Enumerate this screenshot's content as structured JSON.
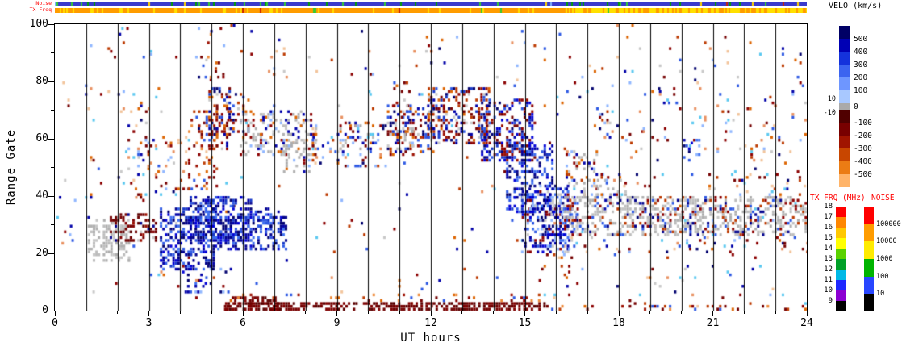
{
  "strips": {
    "noise_label": "Noise",
    "txfreq_label": "TX Freq"
  },
  "chart_data": {
    "type": "scatter",
    "note": "Radar range-time plot: Doppler velocity scatter vs UT hour and range gate; dense regions encoded as bounding boxes [t0,t1,gate0,gate1,density,palette]",
    "axes": {
      "x": {
        "label": "UT hours",
        "range": [
          0,
          24
        ],
        "major_ticks": [
          0,
          3,
          6,
          9,
          12,
          15,
          18,
          21,
          24
        ],
        "minor_step": 1
      },
      "y": {
        "label": "Range Gate",
        "range": [
          0,
          100
        ],
        "major_ticks": [
          0,
          20,
          40,
          60,
          80,
          100
        ],
        "minor_step": 10
      }
    },
    "colorbars": {
      "velo": {
        "title": "VELO (km/s)",
        "boundary_values": [
          500,
          400,
          300,
          200,
          100,
          10,
          -10,
          -100,
          -200,
          -300,
          -400,
          -500
        ],
        "zero_label": "0",
        "segments": [
          [
            "#000066",
            16
          ],
          [
            "#0000B4",
            16
          ],
          [
            "#1432DC",
            16
          ],
          [
            "#3C64F0",
            16
          ],
          [
            "#6E96FF",
            16
          ],
          [
            "#A8C8FF",
            16
          ],
          [
            "#AAAAAA",
            8
          ],
          [
            "#500000",
            16
          ],
          [
            "#780000",
            16
          ],
          [
            "#A01400",
            16
          ],
          [
            "#C84600",
            16
          ],
          [
            "#EB7C14",
            16
          ],
          [
            "#FFB469",
            16
          ]
        ]
      },
      "txfrq": {
        "title": "TX FRQ (MHz)",
        "labels": [
          "18",
          "17",
          "16",
          "15",
          "14",
          "13",
          "12",
          "11",
          "10",
          "9"
        ],
        "colors": [
          "#FF0000",
          "#FF8700",
          "#FFC800",
          "#FFFF00",
          "#5AD200",
          "#00A028",
          "#00B9E6",
          "#1E28FF",
          "#8C00D2",
          "#000000"
        ]
      },
      "noise": {
        "title": "NOISE",
        "labels": [
          "100000",
          "10000",
          "1000",
          "100",
          "10"
        ],
        "colors": [
          "#FF0000",
          "#FF9C00",
          "#FFEB00",
          "#00B400",
          "#2846FF",
          "#000000"
        ]
      }
    },
    "seed": 1337,
    "palettes": {
      "blue": [
        "#00006E",
        "#0000A8",
        "#0000D6",
        "#1638C8",
        "#2B57E3",
        "#3D6FF0",
        "#00008C"
      ],
      "bluemix": [
        "#00006E",
        "#0000A8",
        "#0000D6",
        "#2B57E3",
        "#0000A8",
        "#3D6FF0",
        "#8FB6FF",
        "#8B0000",
        "#C8C8C8"
      ],
      "darkred": [
        "#5A0000",
        "#6E0000",
        "#800000",
        "#750000"
      ],
      "darkredmix": [
        "#5A0000",
        "#6E0000",
        "#800000",
        "#9C1000",
        "#C8C8C8",
        "#00008C",
        "#750000",
        "#6E0000"
      ],
      "redmix": [
        "#750000",
        "#9C1000",
        "#BC3A00",
        "#DC6400",
        "#EE8C3C",
        "#8B0000",
        "#2B57E3"
      ],
      "gray": [
        "#B0B0B0",
        "#BCBCBC",
        "#C6C6C6",
        "#ADADAD"
      ],
      "graymix": [
        "#B0B0B0",
        "#BCBCBC",
        "#C6C6C6",
        "#ADADAD",
        "#B0B0B0",
        "#BCBCBC",
        "#8B0000",
        "#0000A8",
        "#DC6400",
        "#8FB6FF"
      ],
      "grayspeck": [
        "#B0B0B0",
        "#BCBCBC",
        "#C6C6C6",
        "#ADADAD",
        "#B8B8B8",
        "#C0C0C0",
        "#BCBCBC",
        "#B0B0B0",
        "#8B0000",
        "#00008C",
        "#BC3A00",
        "#2B57E3"
      ],
      "redbluemix": [
        "#750000",
        "#9C1000",
        "#0000A8",
        "#1638C8",
        "#BC3A00",
        "#00006E",
        "#8B0000",
        "#2B57E3",
        "#C8C8C8",
        "#DC6400"
      ],
      "bluered": [
        "#00006E",
        "#0000A8",
        "#0000D6",
        "#2B57E3",
        "#1638C8",
        "#750000",
        "#9C1000",
        "#8B0000"
      ],
      "mixed": [
        "#0000A8",
        "#8B0000",
        "#BC3A00",
        "#8FB6FF",
        "#2B57E3",
        "#E89060",
        "#F2C49B",
        "#750000",
        "#C8C8C8",
        "#5AC8F0",
        "#DC6400",
        "#00006E"
      ]
    },
    "regions": [
      [
        0,
        24,
        0,
        100,
        0.01,
        "mixed"
      ],
      [
        15.6,
        24,
        2,
        96,
        0.012,
        "mixed"
      ],
      [
        0.05,
        0.65,
        22,
        46,
        0.06,
        "mixed"
      ],
      [
        1.05,
        2.35,
        17,
        30,
        0.4,
        "gray"
      ],
      [
        1.3,
        2.2,
        28,
        33,
        0.22,
        "gray"
      ],
      [
        1.75,
        3.25,
        24,
        34,
        0.4,
        "darkredmix"
      ],
      [
        2.0,
        3.4,
        44,
        78,
        0.05,
        "mixed"
      ],
      [
        2.55,
        4.3,
        38,
        62,
        0.1,
        "mixed"
      ],
      [
        3.35,
        5.1,
        14,
        36,
        0.42,
        "blue"
      ],
      [
        4.3,
        6.3,
        24,
        40,
        0.5,
        "blue"
      ],
      [
        5.1,
        7.35,
        21,
        33,
        0.46,
        "blue"
      ],
      [
        6.3,
        7.3,
        28,
        36,
        0.3,
        "blue"
      ],
      [
        3.9,
        5.6,
        6,
        16,
        0.16,
        "bluemix"
      ],
      [
        4.25,
        5.15,
        42,
        70,
        0.22,
        "redmix"
      ],
      [
        4.9,
        5.6,
        56,
        78,
        0.34,
        "redbluemix"
      ],
      [
        5.5,
        6.15,
        62,
        76,
        0.3,
        "redbluemix"
      ],
      [
        5.9,
        8.35,
        54,
        70,
        0.32,
        "graymix"
      ],
      [
        7.2,
        8.15,
        48,
        60,
        0.24,
        "graymix"
      ],
      [
        8.2,
        10.6,
        50,
        66,
        0.14,
        "mixed"
      ],
      [
        9.0,
        10.2,
        56,
        66,
        0.2,
        "graymix"
      ],
      [
        10.6,
        12.1,
        54,
        72,
        0.32,
        "redbluemix"
      ],
      [
        10.8,
        11.35,
        66,
        80,
        0.15,
        "redbluemix"
      ],
      [
        10.9,
        11.45,
        56,
        64,
        0.24,
        "graymix"
      ],
      [
        11.9,
        13.9,
        58,
        78,
        0.42,
        "redbluemix"
      ],
      [
        13.6,
        15.25,
        52,
        74,
        0.4,
        "bluered"
      ],
      [
        14.4,
        15.9,
        34,
        58,
        0.34,
        "blue"
      ],
      [
        14.9,
        16.35,
        20,
        44,
        0.38,
        "bluemix"
      ],
      [
        15.5,
        16.65,
        26,
        40,
        0.3,
        "bluemix"
      ],
      [
        15.9,
        16.6,
        4,
        20,
        0.08,
        "mixed"
      ],
      [
        5.35,
        15.6,
        0,
        3,
        0.58,
        "darkred"
      ],
      [
        5.4,
        7.2,
        0,
        5,
        0.4,
        "darkred"
      ],
      [
        5.5,
        15.5,
        3,
        6,
        0.12,
        "redmix"
      ],
      [
        15.6,
        24,
        0,
        2,
        0.18,
        "redmix"
      ],
      [
        16.25,
        24,
        26,
        40,
        0.42,
        "grayspeck"
      ],
      [
        16.3,
        17.3,
        40,
        56,
        0.26,
        "graymix"
      ],
      [
        17.3,
        18.2,
        38,
        48,
        0.18,
        "graymix"
      ],
      [
        16.3,
        24,
        20,
        26,
        0.07,
        "mixed"
      ],
      [
        16.3,
        24,
        40,
        48,
        0.07,
        "mixed"
      ],
      [
        17.2,
        17.8,
        60,
        72,
        0.12,
        "mixed"
      ],
      [
        18.2,
        18.8,
        52,
        64,
        0.1,
        "mixed"
      ],
      [
        19.25,
        19.85,
        72,
        82,
        0.18,
        "redbluemix"
      ],
      [
        20.05,
        20.6,
        52,
        60,
        0.22,
        "bluemix"
      ],
      [
        21.3,
        21.9,
        60,
        72,
        0.1,
        "mixed"
      ],
      [
        22.2,
        23.1,
        52,
        66,
        0.1,
        "mixed"
      ],
      [
        4.7,
        5.4,
        80,
        99,
        0.1,
        "redmix"
      ],
      [
        1.8,
        2.4,
        88,
        99,
        0.07,
        "mixed"
      ],
      [
        6.8,
        7.4,
        78,
        92,
        0.07,
        "mixed"
      ],
      [
        9.8,
        10.4,
        70,
        85,
        0.06,
        "mixed"
      ],
      [
        11.5,
        12.3,
        80,
        95,
        0.06,
        "mixed"
      ]
    ],
    "noise_strip": {
      "seed": 99,
      "segments": [
        {
          "t0": 0,
          "t1": 24,
          "base": "#3A3ACC",
          "ticks": [
            [
              "#00A000",
              0.05
            ],
            [
              "#33CC33",
              0.03
            ],
            [
              "#FFD700",
              0.008
            ],
            [
              "#CC2200",
              0.006
            ],
            [
              "#7FB2FF",
              0.01
            ]
          ]
        }
      ]
    },
    "tx_strip": {
      "seed": 55,
      "segments": [
        {
          "t0": 0,
          "t1": 16.3,
          "base": "#FF9C00",
          "ticks": [
            [
              "#FFE000",
              0.12
            ],
            [
              "#33CC33",
              0.015
            ],
            [
              "#CC2200",
              0.01
            ]
          ]
        },
        {
          "t0": 16.3,
          "t1": 24,
          "base": "#FFE000",
          "ticks": [
            [
              "#FF9C00",
              0.3
            ],
            [
              "#33CC33",
              0.02
            ]
          ]
        }
      ]
    }
  }
}
